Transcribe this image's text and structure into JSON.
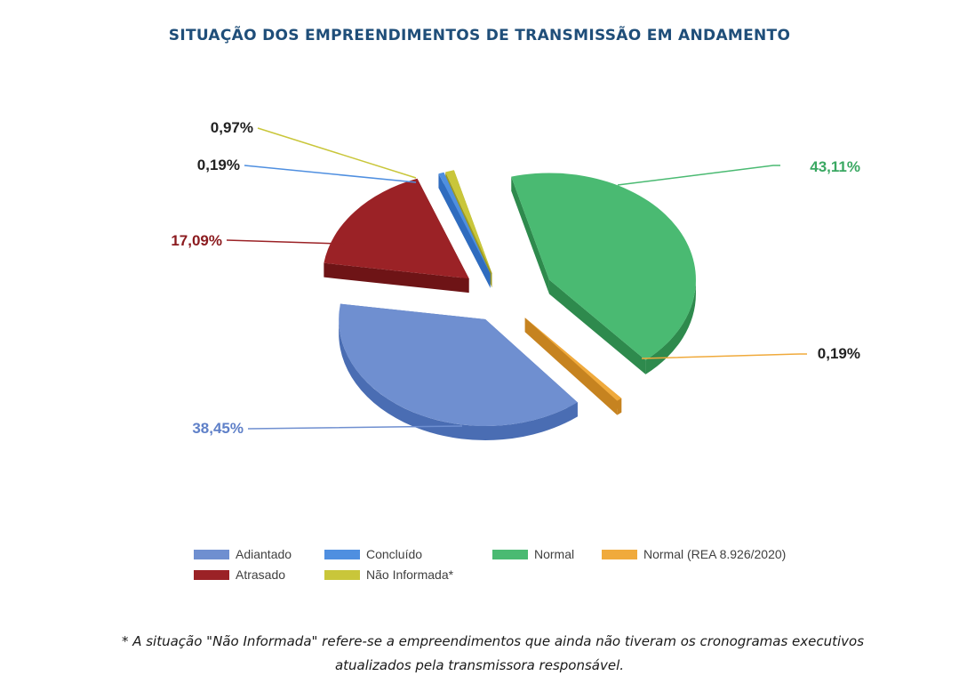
{
  "chart_data": {
    "type": "pie",
    "title": "SITUAÇÃO DOS EMPREENDIMENTOS DE TRANSMISSÃO EM ANDAMENTO",
    "slices": [
      {
        "name": "Normal",
        "value": 43.11,
        "label": "43,11%",
        "color": "#4aba72",
        "side": "#2e8a4d"
      },
      {
        "name": "Normal (REA 8.926/2020)",
        "value": 0.19,
        "label": "0,19%",
        "color": "#f0aa3c",
        "side": "#c68320"
      },
      {
        "name": "Adiantado",
        "value": 38.45,
        "label": "38,45%",
        "color": "#6f8fd0",
        "side": "#4a6db3"
      },
      {
        "name": "Atrasado",
        "value": 17.09,
        "label": "17,09%",
        "color": "#9b2226",
        "side": "#6e1416"
      },
      {
        "name": "Concluído",
        "value": 0.19,
        "label": "0,19%",
        "color": "#4f8fe0",
        "side": "#2f6cbf"
      },
      {
        "name": "Não Informada*",
        "value": 0.97,
        "label": "0,97%",
        "color": "#c9c63a",
        "side": "#9c9a24"
      }
    ],
    "legend_placement": "bottom"
  },
  "footnote": {
    "line1": "* A situação \"Não Informada\" refere-se a empreendimentos que ainda não tiveram os cronogramas executivos",
    "line2": "atualizados pela transmissora responsável."
  }
}
